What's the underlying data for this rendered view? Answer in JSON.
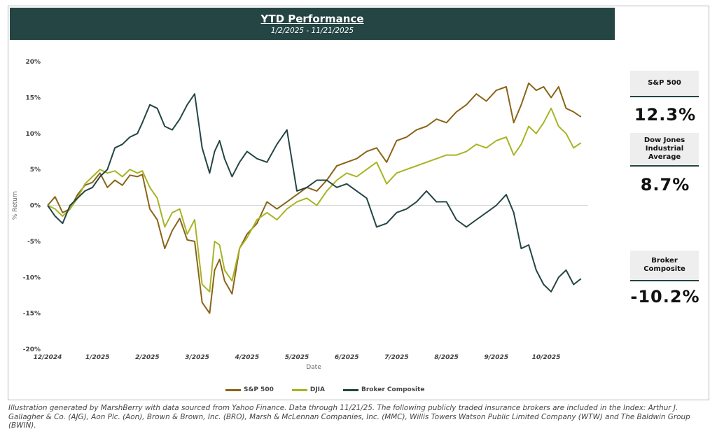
{
  "title": "YTD Performance",
  "subtitle": "1/2/2025 - 11/21/2025",
  "side_cards": [
    {
      "label": "S&P 500",
      "value": "12.3%"
    },
    {
      "label": "Dow Jones Industrial Average",
      "value": "8.7%"
    },
    {
      "label": "Broker Composite",
      "value": "-10.2%"
    }
  ],
  "footnote": "Illustration generated by MarshBerry with data sourced from Yahoo Finance. Data through 11/21/25. The following publicly traded insurance brokers are included in the Index: Arthur J. Gallagher & Co. (AJG), Aon Plc. (Aon), Brown & Brown, Inc. (BRO), Marsh & McLennan Companies, Inc. (MMC), Willis Towers Watson Public Limited Company (WTW) and The Baldwin Group (BWIN).",
  "chart_data": {
    "type": "line",
    "title": "YTD Performance",
    "xlabel": "Date",
    "ylabel": "% Return",
    "ylim": [
      -20,
      20
    ],
    "yticks": [
      20,
      15,
      10,
      5,
      0,
      -5,
      -10,
      -15,
      -20
    ],
    "ytick_labels": [
      "20%",
      "15%",
      "10%",
      "5%",
      "0%",
      "-5%",
      "-10%",
      "-15%",
      "-20%"
    ],
    "xlim": [
      0,
      10.7
    ],
    "xticks": [
      0,
      1,
      2,
      3,
      4,
      5,
      6,
      7,
      8,
      9,
      10
    ],
    "xtick_labels": [
      "12/2024",
      "1/2025",
      "2/2025",
      "3/2025",
      "4/2025",
      "5/2025",
      "6/2025",
      "7/2025",
      "8/2025",
      "9/2025",
      "10/2025"
    ],
    "legend": "bottom-center",
    "series": [
      {
        "name": "S&P 500",
        "color": "#8a6417",
        "x": [
          0,
          0.15,
          0.3,
          0.45,
          0.6,
          0.75,
          0.9,
          1.05,
          1.2,
          1.35,
          1.5,
          1.65,
          1.8,
          1.9,
          2.05,
          2.2,
          2.35,
          2.5,
          2.65,
          2.8,
          2.95,
          3.1,
          3.25,
          3.35,
          3.45,
          3.55,
          3.7,
          3.85,
          4.0,
          4.2,
          4.4,
          4.6,
          4.8,
          5.0,
          5.2,
          5.4,
          5.6,
          5.8,
          6.0,
          6.2,
          6.4,
          6.6,
          6.8,
          7.0,
          7.2,
          7.4,
          7.6,
          7.8,
          8.0,
          8.2,
          8.4,
          8.6,
          8.8,
          9.0,
          9.2,
          9.35,
          9.5,
          9.65,
          9.8,
          9.95,
          10.1,
          10.25,
          10.4,
          10.55,
          10.7
        ],
        "values": [
          0,
          1.2,
          -1.0,
          -0.5,
          1.5,
          2.8,
          3.2,
          4.5,
          2.5,
          3.5,
          2.8,
          4.2,
          4.0,
          4.3,
          -0.5,
          -2.0,
          -6.0,
          -3.5,
          -1.8,
          -4.8,
          -5.0,
          -13.5,
          -15.0,
          -9.0,
          -7.5,
          -10.5,
          -12.3,
          -6.0,
          -4.0,
          -2.5,
          0.5,
          -0.5,
          0.5,
          1.5,
          2.5,
          2.0,
          3.5,
          5.5,
          6.0,
          6.5,
          7.5,
          8.0,
          6.0,
          9.0,
          9.5,
          10.5,
          11.0,
          12.0,
          11.5,
          13.0,
          14.0,
          15.5,
          14.5,
          16.0,
          16.5,
          11.5,
          14.0,
          17.0,
          16.0,
          16.5,
          15.0,
          16.5,
          13.5,
          13.0,
          12.3
        ]
      },
      {
        "name": "DJIA",
        "color": "#a8b423",
        "x": [
          0,
          0.15,
          0.3,
          0.45,
          0.6,
          0.75,
          0.9,
          1.05,
          1.2,
          1.35,
          1.5,
          1.65,
          1.8,
          1.9,
          2.05,
          2.2,
          2.35,
          2.5,
          2.65,
          2.8,
          2.95,
          3.1,
          3.25,
          3.35,
          3.45,
          3.55,
          3.7,
          3.85,
          4.0,
          4.2,
          4.4,
          4.6,
          4.8,
          5.0,
          5.2,
          5.4,
          5.6,
          5.8,
          6.0,
          6.2,
          6.4,
          6.6,
          6.8,
          7.0,
          7.2,
          7.4,
          7.6,
          7.8,
          8.0,
          8.2,
          8.4,
          8.6,
          8.8,
          9.0,
          9.2,
          9.35,
          9.5,
          9.65,
          9.8,
          9.95,
          10.1,
          10.25,
          10.4,
          10.55,
          10.7
        ],
        "values": [
          0,
          -0.5,
          -1.5,
          -0.5,
          1.0,
          3.0,
          4.0,
          5.0,
          4.5,
          4.8,
          4.0,
          5.0,
          4.5,
          4.8,
          2.5,
          1.0,
          -3.0,
          -1.0,
          -0.5,
          -4.0,
          -2.0,
          -11.0,
          -12.0,
          -5.0,
          -5.5,
          -9.0,
          -10.5,
          -6.0,
          -4.5,
          -2.0,
          -1.0,
          -2.0,
          -0.5,
          0.5,
          1.0,
          0.0,
          2.0,
          3.5,
          4.5,
          4.0,
          5.0,
          6.0,
          3.0,
          4.5,
          5.0,
          5.5,
          6.0,
          6.5,
          7.0,
          7.0,
          7.5,
          8.5,
          8.0,
          9.0,
          9.5,
          7.0,
          8.5,
          11.0,
          10.0,
          11.5,
          13.5,
          11.0,
          10.0,
          8.0,
          8.7
        ]
      },
      {
        "name": "Broker Composite",
        "color": "#244544",
        "x": [
          0,
          0.15,
          0.3,
          0.45,
          0.6,
          0.75,
          0.9,
          1.05,
          1.2,
          1.35,
          1.5,
          1.65,
          1.8,
          1.9,
          2.05,
          2.2,
          2.35,
          2.5,
          2.65,
          2.8,
          2.95,
          3.1,
          3.25,
          3.35,
          3.45,
          3.55,
          3.7,
          3.85,
          4.0,
          4.2,
          4.4,
          4.6,
          4.8,
          5.0,
          5.2,
          5.4,
          5.6,
          5.8,
          6.0,
          6.2,
          6.4,
          6.6,
          6.8,
          7.0,
          7.2,
          7.4,
          7.6,
          7.8,
          8.0,
          8.2,
          8.4,
          8.6,
          8.8,
          9.0,
          9.2,
          9.35,
          9.5,
          9.65,
          9.8,
          9.95,
          10.1,
          10.25,
          10.4,
          10.55,
          10.7
        ],
        "values": [
          0,
          -1.5,
          -2.5,
          0.0,
          1.0,
          2.0,
          2.5,
          4.0,
          5.0,
          8.0,
          8.5,
          9.5,
          10.0,
          11.5,
          14.0,
          13.5,
          11.0,
          10.5,
          12.0,
          14.0,
          15.5,
          8.0,
          4.5,
          7.5,
          9.0,
          6.5,
          4.0,
          6.0,
          7.5,
          6.5,
          6.0,
          8.5,
          10.5,
          2.0,
          2.5,
          3.5,
          3.5,
          2.5,
          3.0,
          2.0,
          1.0,
          -3.0,
          -2.5,
          -1.0,
          -0.5,
          0.5,
          2.0,
          0.5,
          0.5,
          -2.0,
          -3.0,
          -2.0,
          -1.0,
          0.0,
          1.5,
          -1.0,
          -6.0,
          -5.5,
          -9.0,
          -11.0,
          -12.0,
          -10.0,
          -9.0,
          -11.0,
          -10.2
        ]
      }
    ]
  }
}
